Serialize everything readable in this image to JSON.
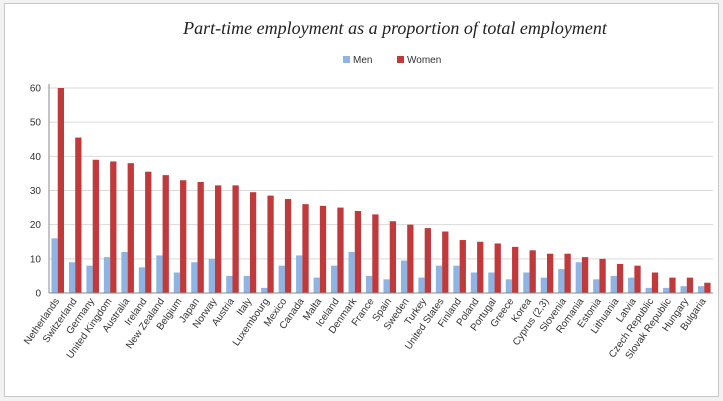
{
  "chart_data": {
    "type": "bar",
    "title": "Part-time employment as a proportion of total employment",
    "xlabel": "",
    "ylabel": "",
    "ylim": [
      0,
      60
    ],
    "yticks": [
      0,
      10,
      20,
      30,
      40,
      50,
      60
    ],
    "grid": true,
    "legend_position": "top-center",
    "categories": [
      "Netherlands",
      "Switzerland",
      "Germany",
      "United Kingdom",
      "Australia",
      "Ireland",
      "New Zealand",
      "Belgium",
      "Japan",
      "Norway",
      "Austria",
      "Italy",
      "Luxembourg",
      "Mexico",
      "Canada",
      "Malta",
      "Iceland",
      "Denmark",
      "France",
      "Spain",
      "Sweden",
      "Turkey",
      "United States",
      "Finland",
      "Poland",
      "Portugal",
      "Greece",
      "Korea",
      "Cyprus (2,3)",
      "Slovenia",
      "Romania",
      "Estonia",
      "Lithuania",
      "Latvia",
      "Czech Republic",
      "Slovak Republic",
      "Hungary",
      "Bulgaria"
    ],
    "series": [
      {
        "name": "Men",
        "color": "#8eb4e3",
        "values": [
          16,
          9,
          8,
          10.5,
          12,
          7.5,
          11,
          6,
          9,
          10,
          5,
          5,
          1.5,
          8,
          11,
          4.5,
          8,
          12,
          5,
          4,
          9.5,
          4.5,
          8,
          8,
          6,
          6,
          4,
          6,
          4.5,
          7,
          9,
          4,
          5,
          4.5,
          1.5,
          1.5,
          2,
          2
        ]
      },
      {
        "name": "Women",
        "color": "#c0393b",
        "values": [
          60,
          45.5,
          39,
          38.5,
          38,
          35.5,
          34.5,
          33,
          32.5,
          31.5,
          31.5,
          29.5,
          28.5,
          27.5,
          26,
          25.5,
          25,
          24,
          23,
          21,
          20,
          19,
          18,
          15.5,
          15,
          14.5,
          13.5,
          12.5,
          11.5,
          11.5,
          10.5,
          10,
          8.5,
          8,
          6,
          4.5,
          4.5,
          3
        ]
      }
    ]
  }
}
